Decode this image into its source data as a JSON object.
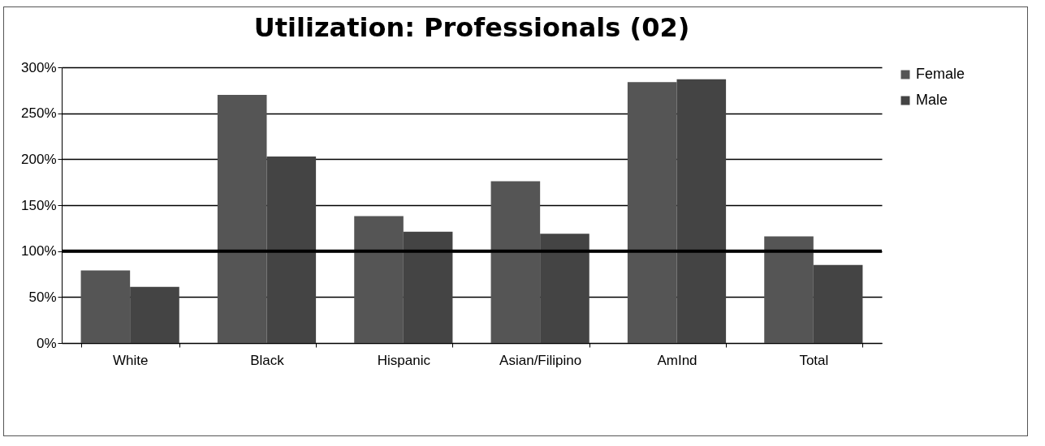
{
  "chart_data": {
    "type": "bar",
    "title": "Utilization:  Professionals (02)",
    "categories": [
      "White",
      "Black",
      "Hispanic",
      "Asian/Filipino",
      "AmInd",
      "Total"
    ],
    "series": [
      {
        "name": "Female",
        "color": "#555555",
        "values": [
          79,
          270,
          138,
          176,
          284,
          116
        ]
      },
      {
        "name": "Male",
        "color": "#444444",
        "values": [
          61,
          203,
          121,
          119,
          287,
          85
        ]
      }
    ],
    "ylim": [
      0,
      300
    ],
    "yticks": [
      {
        "value": 0,
        "label": "0%"
      },
      {
        "value": 50,
        "label": "50%"
      },
      {
        "value": 100,
        "label": "100%"
      },
      {
        "value": 150,
        "label": "150%"
      },
      {
        "value": 200,
        "label": "200%"
      },
      {
        "value": 250,
        "label": "250%"
      },
      {
        "value": 300,
        "label": "300%"
      }
    ],
    "ref_lines": [
      {
        "axis": "y",
        "value": 100,
        "color": "#000000"
      }
    ],
    "grid": "y",
    "legend": "right"
  }
}
